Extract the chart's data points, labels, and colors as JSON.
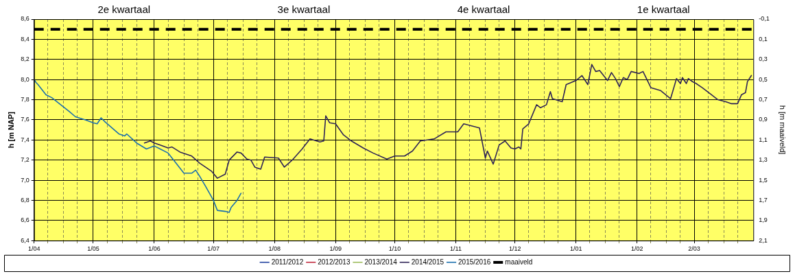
{
  "chart_data": {
    "type": "line",
    "ylabel": "h [m NAP]",
    "y2label": "h [m maaiveld]",
    "annotations": [
      "2e kwartaal",
      "3e kwartaal",
      "4e kwartaal",
      "1e kwartaal"
    ],
    "xlim": [
      "2014-04-01",
      "2015-04-01"
    ],
    "xticks": [
      {
        "value": "2014-04-01",
        "label": "1/04"
      },
      {
        "value": "2014-04-08",
        "label": null
      },
      {
        "value": "2014-04-16",
        "label": null
      },
      {
        "value": "2014-04-23",
        "label": null
      },
      {
        "value": "2014-05-01",
        "label": "1/05"
      },
      {
        "value": "2014-05-08",
        "label": null
      },
      {
        "value": "2014-05-16",
        "label": null
      },
      {
        "value": "2014-05-23",
        "label": null
      },
      {
        "value": "2014-06-01",
        "label": "1/06"
      },
      {
        "value": "2014-06-08",
        "label": null
      },
      {
        "value": "2014-06-16",
        "label": null
      },
      {
        "value": "2014-06-23",
        "label": null
      },
      {
        "value": "2014-07-01",
        "label": "1/07"
      },
      {
        "value": "2014-07-08",
        "label": null
      },
      {
        "value": "2014-07-16",
        "label": null
      },
      {
        "value": "2014-07-23",
        "label": null
      },
      {
        "value": "2014-08-01",
        "label": "1/08"
      },
      {
        "value": "2014-08-08",
        "label": null
      },
      {
        "value": "2014-08-16",
        "label": null
      },
      {
        "value": "2014-08-23",
        "label": null
      },
      {
        "value": "2014-09-01",
        "label": "1/09"
      },
      {
        "value": "2014-09-08",
        "label": null
      },
      {
        "value": "2014-09-16",
        "label": null
      },
      {
        "value": "2014-09-23",
        "label": null
      },
      {
        "value": "2014-10-01",
        "label": "1/10"
      },
      {
        "value": "2014-10-08",
        "label": null
      },
      {
        "value": "2014-10-16",
        "label": null
      },
      {
        "value": "2014-10-23",
        "label": null
      },
      {
        "value": "2014-11-01",
        "label": "1/11"
      },
      {
        "value": "2014-11-08",
        "label": null
      },
      {
        "value": "2014-11-16",
        "label": null
      },
      {
        "value": "2014-11-23",
        "label": null
      },
      {
        "value": "2014-12-01",
        "label": "1/12"
      },
      {
        "value": "2014-12-08",
        "label": null
      },
      {
        "value": "2014-12-16",
        "label": null
      },
      {
        "value": "2014-12-23",
        "label": null
      },
      {
        "value": "2015-01-01",
        "label": "1/01"
      },
      {
        "value": "2015-01-08",
        "label": null
      },
      {
        "value": "2015-01-16",
        "label": null
      },
      {
        "value": "2015-01-23",
        "label": null
      },
      {
        "value": "2015-02-01",
        "label": "1/02"
      },
      {
        "value": "2015-02-08",
        "label": null
      },
      {
        "value": "2015-02-16",
        "label": null
      },
      {
        "value": "2015-02-23",
        "label": null
      },
      {
        "value": "2015-03-02",
        "label": "2/03"
      },
      {
        "value": "2015-03-09",
        "label": null
      },
      {
        "value": "2015-03-17",
        "label": null
      },
      {
        "value": "2015-03-24",
        "label": null
      }
    ],
    "ylim": [
      6.4,
      8.6
    ],
    "yticks": [
      {
        "value": 6.4,
        "label": "6,4"
      },
      {
        "value": 6.6,
        "label": "6,6"
      },
      {
        "value": 6.8,
        "label": "6,8"
      },
      {
        "value": 7.0,
        "label": "7,0"
      },
      {
        "value": 7.2,
        "label": "7,2"
      },
      {
        "value": 7.4,
        "label": "7,4"
      },
      {
        "value": 7.6,
        "label": "7,6"
      },
      {
        "value": 7.8,
        "label": "7,8"
      },
      {
        "value": 8.0,
        "label": "8,0"
      },
      {
        "value": 8.2,
        "label": "8,2"
      },
      {
        "value": 8.4,
        "label": "8,4"
      },
      {
        "value": 8.6,
        "label": "8,6"
      }
    ],
    "y2lim": [
      2.1,
      -0.1
    ],
    "y2ticks": [
      {
        "value": 2.1,
        "label": "2,1"
      },
      {
        "value": 1.9,
        "label": "1,9"
      },
      {
        "value": 1.7,
        "label": "1,7"
      },
      {
        "value": 1.5,
        "label": "1,5"
      },
      {
        "value": 1.3,
        "label": "1,3"
      },
      {
        "value": 1.1,
        "label": "1,1"
      },
      {
        "value": 0.9,
        "label": "0,9"
      },
      {
        "value": 0.7,
        "label": "0,7"
      },
      {
        "value": 0.5,
        "label": "0,5"
      },
      {
        "value": 0.3,
        "label": "0,3"
      },
      {
        "value": 0.1,
        "label": "0,1"
      },
      {
        "value": -0.1,
        "label": "-0,1"
      }
    ],
    "grid": true,
    "legend": "bottom",
    "marker": "none",
    "series": [
      {
        "name": "2011/2012",
        "color": "#1f3f9f"
      },
      {
        "name": "2012/2013",
        "color": "#c0283c"
      },
      {
        "name": "2013/2014",
        "color": "#9bbb59"
      },
      {
        "name": "2014/2015",
        "color": "#2e2356",
        "x": [
          "2014-05-27",
          "2014-05-30",
          "2014-06-01",
          "2014-06-04",
          "2014-06-08",
          "2014-06-10",
          "2014-06-14",
          "2014-06-20",
          "2014-06-24",
          "2014-06-30",
          "2014-07-03",
          "2014-07-07",
          "2014-07-09",
          "2014-07-13",
          "2014-07-15",
          "2014-07-18",
          "2014-07-20",
          "2014-07-22",
          "2014-07-25",
          "2014-07-27",
          "2014-08-03",
          "2014-08-06",
          "2014-08-10",
          "2014-08-15",
          "2014-08-19",
          "2014-08-24",
          "2014-08-26",
          "2014-08-27",
          "2014-08-29",
          "2014-09-01",
          "2014-09-05",
          "2014-09-09",
          "2014-09-15",
          "2014-09-20",
          "2014-09-27",
          "2014-10-01",
          "2014-10-06",
          "2014-10-10",
          "2014-10-14",
          "2014-10-21",
          "2014-10-27",
          "2014-11-02",
          "2014-11-05",
          "2014-11-13",
          "2014-11-16",
          "2014-11-17",
          "2014-11-20",
          "2014-11-23",
          "2014-11-26",
          "2014-11-29",
          "2014-12-01",
          "2014-12-03",
          "2014-12-04",
          "2014-12-05",
          "2014-12-08",
          "2014-12-12",
          "2014-12-14",
          "2014-12-17",
          "2014-12-19",
          "2014-12-20",
          "2014-12-25",
          "2014-12-27",
          "2015-01-01",
          "2015-01-04",
          "2015-01-07",
          "2015-01-09",
          "2015-01-11",
          "2015-01-13",
          "2015-01-17",
          "2015-01-19",
          "2015-01-21",
          "2015-01-23",
          "2015-01-25",
          "2015-01-27",
          "2015-01-29",
          "2015-02-02",
          "2015-02-04",
          "2015-02-08",
          "2015-02-13",
          "2015-02-18",
          "2015-02-21",
          "2015-02-23",
          "2015-02-24",
          "2015-02-26",
          "2015-02-27",
          "2015-03-01",
          "2015-03-03",
          "2015-03-06",
          "2015-03-10",
          "2015-03-14",
          "2015-03-18",
          "2015-03-21",
          "2015-03-24",
          "2015-03-26",
          "2015-03-28",
          "2015-03-29",
          "2015-03-31"
        ],
        "values": [
          7.37,
          7.39,
          7.37,
          7.35,
          7.32,
          7.33,
          7.28,
          7.24,
          7.17,
          7.09,
          7.02,
          7.06,
          7.2,
          7.28,
          7.27,
          7.21,
          7.2,
          7.13,
          7.11,
          7.23,
          7.22,
          7.13,
          7.2,
          7.31,
          7.41,
          7.38,
          7.39,
          7.64,
          7.57,
          7.56,
          7.45,
          7.39,
          7.32,
          7.27,
          7.21,
          7.24,
          7.24,
          7.29,
          7.39,
          7.41,
          7.48,
          7.48,
          7.56,
          7.52,
          7.22,
          7.29,
          7.16,
          7.35,
          7.39,
          7.32,
          7.31,
          7.33,
          7.31,
          7.51,
          7.56,
          7.75,
          7.72,
          7.75,
          7.88,
          7.81,
          7.78,
          7.95,
          7.99,
          8.04,
          7.95,
          8.15,
          8.08,
          8.09,
          7.99,
          8.07,
          8.01,
          7.93,
          8.02,
          8.0,
          8.08,
          8.06,
          8.08,
          7.92,
          7.89,
          7.81,
          8.01,
          7.96,
          8.02,
          7.96,
          8.01,
          7.98,
          7.96,
          7.92,
          7.86,
          7.8,
          7.78,
          7.76,
          7.76,
          7.85,
          7.87,
          7.98,
          8.04
        ]
      },
      {
        "name": "2015/2016",
        "color": "#1a6fae",
        "x": [
          "2014-04-01",
          "2014-04-02",
          "2014-04-03",
          "2014-04-07",
          "2014-04-10",
          "2014-04-19",
          "2014-04-22",
          "2014-04-27",
          "2014-05-01",
          "2014-05-03",
          "2014-05-05",
          "2014-05-07",
          "2014-05-14",
          "2014-05-17",
          "2014-05-18",
          "2014-05-23",
          "2014-05-28",
          "2014-06-01",
          "2014-06-04",
          "2014-06-08",
          "2014-06-12",
          "2014-06-16",
          "2014-06-20",
          "2014-06-22",
          "2014-06-24",
          "2014-06-27",
          "2014-07-01",
          "2014-07-03",
          "2014-07-07",
          "2014-07-09",
          "2014-07-10",
          "2014-07-13",
          "2014-07-15"
        ],
        "values": [
          8.0,
          7.97,
          7.95,
          7.85,
          7.82,
          7.68,
          7.63,
          7.6,
          7.57,
          7.56,
          7.62,
          7.58,
          7.46,
          7.44,
          7.46,
          7.37,
          7.31,
          7.34,
          7.31,
          7.27,
          7.17,
          7.07,
          7.07,
          7.1,
          7.04,
          6.94,
          6.8,
          6.7,
          6.69,
          6.68,
          6.73,
          6.8,
          6.87
        ]
      },
      {
        "name": "maaiveld",
        "color": "#000000",
        "line_style": "dashed",
        "x": [
          "2014-04-01",
          "2015-04-01"
        ],
        "values": [
          8.5,
          8.5
        ]
      }
    ]
  }
}
